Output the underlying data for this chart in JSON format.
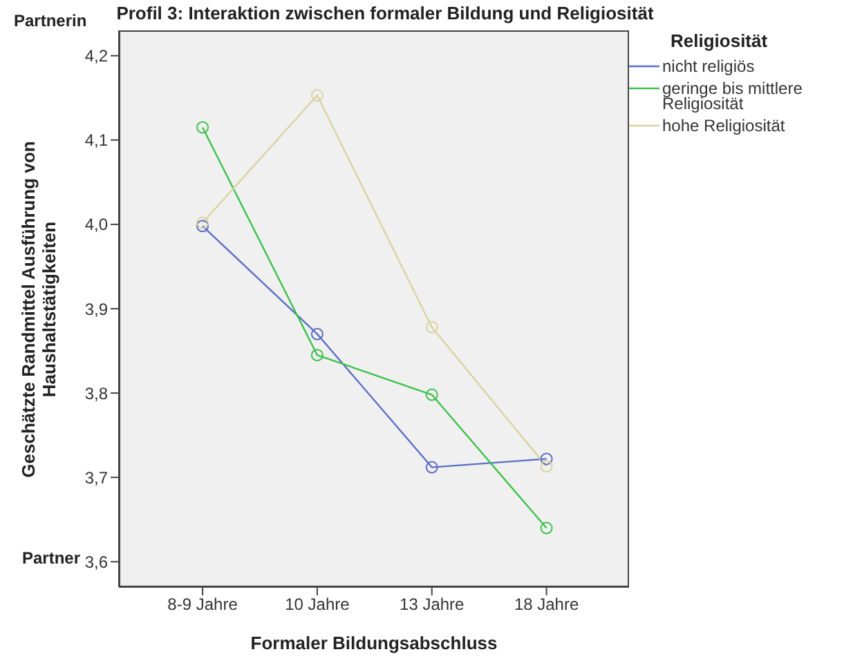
{
  "chart_data": {
    "type": "line",
    "title": "Profil 3: Interaktion zwischen formaler Bildung und Religiosität",
    "xlabel": "Formaler Bildungsabschluss",
    "ylabel": "Geschätzte Randmittel Ausführung von Haushaltstätigkeiten",
    "legend_title": "Religiosität",
    "annotations": [
      "Partnerin",
      "Partner"
    ],
    "categories": [
      "8-9 Jahre",
      "10 Jahre",
      "13 Jahre",
      "18 Jahre"
    ],
    "series": [
      {
        "name": "nicht religiös",
        "color": "#5a6ec6",
        "values": [
          3.998,
          3.87,
          3.712,
          3.722
        ]
      },
      {
        "name": "geringe bis mittlere Religiosität",
        "color": "#3cc24a",
        "values": [
          4.115,
          3.845,
          3.798,
          3.64
        ]
      },
      {
        "name": "hohe Religiosität",
        "color": "#d9d3a0",
        "values": [
          4.002,
          4.153,
          3.878,
          3.713
        ]
      }
    ],
    "ylim": [
      3.57,
      4.23
    ],
    "yticks": [
      {
        "value": 3.6,
        "label": "3,6"
      },
      {
        "value": 3.7,
        "label": "3,7"
      },
      {
        "value": 3.8,
        "label": "3,8"
      },
      {
        "value": 3.9,
        "label": "3,9"
      },
      {
        "value": 4.0,
        "label": "4,0"
      },
      {
        "value": 4.1,
        "label": "4,1"
      },
      {
        "value": 4.2,
        "label": "4,2"
      }
    ],
    "grid": false,
    "legend": "top right",
    "marker": "circle",
    "line_style": "solid"
  }
}
